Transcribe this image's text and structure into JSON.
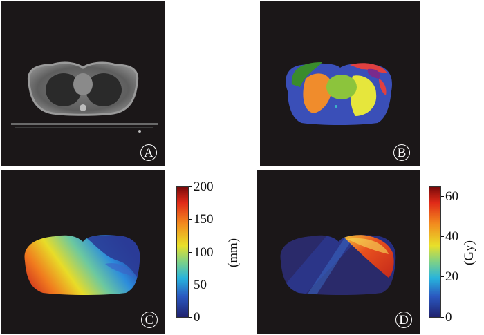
{
  "panels": {
    "a": {
      "badge": "A"
    },
    "b": {
      "badge": "B"
    },
    "c": {
      "badge": "C",
      "colorbar": {
        "ticks": [
          "200",
          "150",
          "100",
          "50",
          "0"
        ],
        "unit": "(mm)"
      }
    },
    "d": {
      "badge": "D",
      "colorbar": {
        "ticks": [
          "60",
          "40",
          "20",
          "0"
        ],
        "unit": "(Gy)"
      }
    }
  },
  "colors": {
    "panel_bg": "#1b1718",
    "body_blue": "#3a4fb8",
    "lung_left_orange": "#f08c2c",
    "lung_right_yellow": "#e6e63c",
    "heart_green": "#8cc43c",
    "muscle_green": "#3a8c2c",
    "breast_red": "#e04040",
    "breast_purple": "#7a2a8c"
  }
}
